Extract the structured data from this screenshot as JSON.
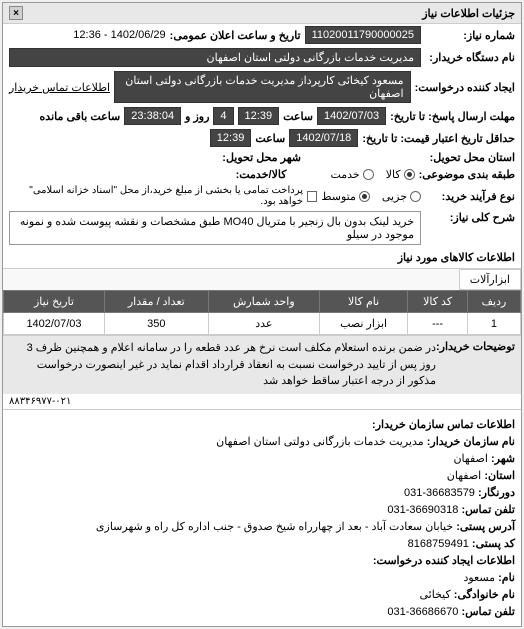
{
  "header": {
    "title": "جزئیات اطلاعات نیاز"
  },
  "fields": {
    "request_number_label": "شماره نیاز:",
    "request_number": "11020011790000025",
    "announce_date_label": "تاریخ و ساعت اعلان عمومی:",
    "announce_date": "1402/06/29 - 12:36",
    "buyer_org_label": "نام دستگاه خریدار:",
    "buyer_org": "مدیریت خدمات بازرگانی دولتی استان اصفهان",
    "requester_label": "ایجاد کننده درخواست:",
    "requester": "مسعود کیخائی کارپرداز مدیریت خدمات بازرگانی دولتی استان اصفهان",
    "buyer_contact_link": "اطلاعات تماس خریدار",
    "deadline_label": "مهلت ارسال پاسخ: تا تاریخ:",
    "deadline_date": "1402/07/03",
    "time_label": "ساعت",
    "deadline_time": "12:39",
    "days_remaining": "4",
    "days_label": "روز و",
    "time_remaining": "23:38:04",
    "time_remaining_label": "ساعت باقی مانده",
    "valid_until_label": "حداقل تاریخ اعتبار قیمت: تا تاریخ:",
    "valid_until_date": "1402/07/18",
    "valid_until_time": "12:39",
    "delivery_state_label": "استان محل تحویل:",
    "delivery_city_label": "شهر محل تحویل:",
    "group_type_label": "طبقه بندی موضوعی:",
    "radio_goods": "کالا",
    "radio_service": "خدمت",
    "price_label": "کالا/خدمت:",
    "purchase_type_label": "نوع فرآیند خرید:",
    "radio_partial": "جزیی",
    "radio_medium": "متوسط",
    "checkbox_label": "پرداخت تمامی یا بخشی از مبلغ خرید،از محل \"اسناد خزانه اسلامی\" خواهد بود.",
    "summary_label": "شرح کلی نیاز:",
    "summary_text": "خرید لینک بدون بال زنجیر با متریال MO40 طبق مشخصات و نقشه پیوست شده و نمونه موجود در سیلو",
    "goods_section_title": "اطلاعات کالاهای مورد نیاز",
    "tab_tools": "ابزارآلات",
    "note_label": "توضیحات خریدار:",
    "note_text": "در ضمن برنده استعلام مکلف است نرخ هر عدد قطعه را در سامانه اعلام و همچنین ظرف 3 روز پس از تایید درخواست نسبت به انعقاد قرارداد اقدام نماید در غیر اینصورت درخواست مذکور از درجه اعتبار ساقط خواهد شد",
    "phone_footer": "۸۸۳۴۶۹۷۷-۰۲۱"
  },
  "table": {
    "columns": [
      "ردیف",
      "کد کالا",
      "نام کالا",
      "واحد شمارش",
      "تعداد / مقدار",
      "تاریخ نیاز"
    ],
    "rows": [
      [
        "1",
        "---",
        "ابزار نصب",
        "عدد",
        "350",
        "1402/07/03"
      ]
    ]
  },
  "contact": {
    "section1_title": "اطلاعات تماس سازمان خریدار:",
    "org_name_label": "نام سازمان خریدار:",
    "org_name": "مدیریت خدمات بازرگانی دولتی استان اصفهان",
    "city_label": "شهر:",
    "city": "اصفهان",
    "state_label": "استان:",
    "state": "اصفهان",
    "fax_label": "دورنگار:",
    "fax": "36683579-031",
    "phone_label": "تلفن تماس:",
    "phone": "36690318-031",
    "address_label": "آدرس پستی:",
    "address": "خیابان سعادت آباد - بعد از چهارراه شیخ صدوق - جنب اداره کل راه و شهرسازی",
    "postal_label": "کد پستی:",
    "postal": "8168759491",
    "section2_title": "اطلاعات ایجاد کننده درخواست:",
    "name_label": "نام:",
    "name": "مسعود",
    "lastname_label": "نام خانوادگی:",
    "lastname": "کیخائی",
    "phone2_label": "تلفن تماس:",
    "phone2": "36686670-031"
  }
}
